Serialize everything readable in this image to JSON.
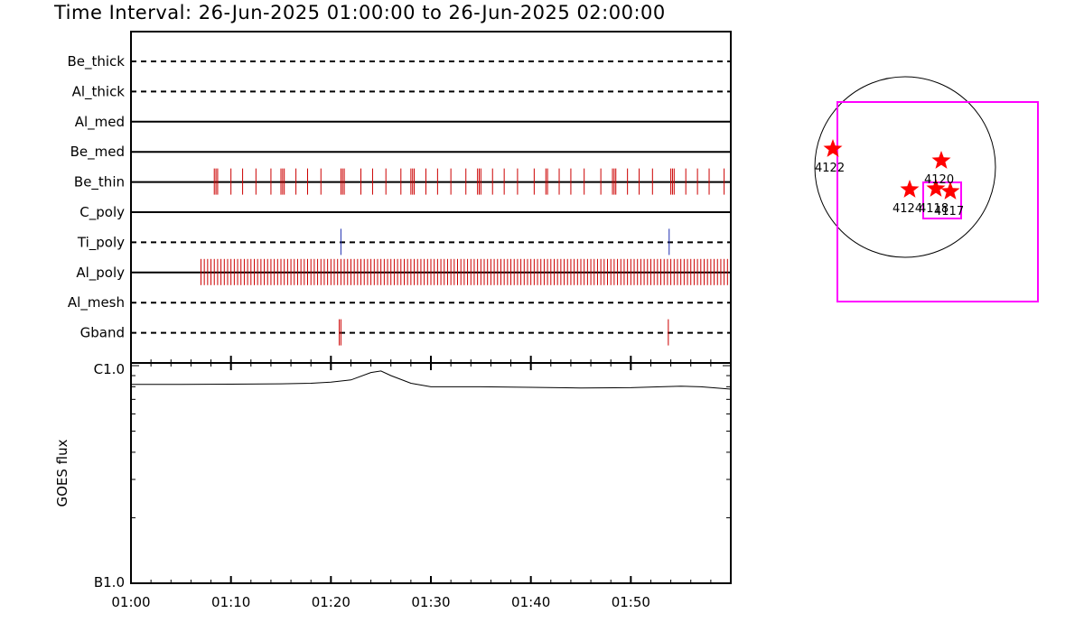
{
  "title": "Time Interval: 26-Jun-2025 01:00:00 to 26-Jun-2025 02:00:00",
  "chart_data": [
    {
      "type": "timeline",
      "x_range": [
        "01:00",
        "02:00"
      ],
      "x_ticks": [
        "01:00",
        "01:10",
        "01:20",
        "01:30",
        "01:40",
        "01:50"
      ],
      "rows": [
        {
          "name": "Be_thick",
          "style": "dashed",
          "events": [],
          "color": "#cc0000"
        },
        {
          "name": "Al_thick",
          "style": "dashed",
          "events": [],
          "color": "#cc0000"
        },
        {
          "name": "Al_med",
          "style": "solid",
          "events": [],
          "color": "#cc0000"
        },
        {
          "name": "Be_med",
          "style": "solid",
          "events": [],
          "color": "#cc0000"
        },
        {
          "name": "Be_thin",
          "style": "solid",
          "color": "#cc0000",
          "events": [
            "01:08:20",
            "01:08:30",
            "01:08:40",
            "01:10:00",
            "01:11:10",
            "01:12:30",
            "01:14:00",
            "01:15:00",
            "01:15:10",
            "01:15:20",
            "01:16:30",
            "01:17:40",
            "01:19:00",
            "01:21:00",
            "01:21:10",
            "01:21:20",
            "01:23:00",
            "01:24:10",
            "01:25:30",
            "01:27:00",
            "01:28:00",
            "01:28:10",
            "01:28:20",
            "01:29:30",
            "01:30:40",
            "01:32:00",
            "01:33:30",
            "01:34:40",
            "01:34:50",
            "01:35:00",
            "01:36:10",
            "01:37:20",
            "01:38:40",
            "01:40:20",
            "01:41:30",
            "01:41:40",
            "01:42:50",
            "01:44:00",
            "01:45:20",
            "01:47:00",
            "01:48:10",
            "01:48:20",
            "01:48:30",
            "01:49:40",
            "01:50:50",
            "01:52:10",
            "01:54:00",
            "01:54:10",
            "01:54:20",
            "01:55:30",
            "01:56:40",
            "01:57:50",
            "01:59:20"
          ]
        },
        {
          "name": "C_poly",
          "style": "solid",
          "events": [],
          "color": "#cc0000"
        },
        {
          "name": "Ti_poly",
          "style": "dashed",
          "color": "#1f2fb0",
          "events": [
            "01:21:00",
            "01:53:50"
          ]
        },
        {
          "name": "Al_poly",
          "style": "solid",
          "color": "#cc0000",
          "events": []
        },
        {
          "name": "Al_mesh",
          "style": "dashed",
          "events": [],
          "color": "#cc0000"
        },
        {
          "name": "Gband",
          "style": "dashed",
          "color": "#cc0000",
          "events": [
            "01:20:50",
            "01:21:00",
            "01:53:45"
          ]
        }
      ],
      "al_poly_dense": {
        "start": "01:07:00",
        "end": "02:00:00",
        "interval_seconds": 20
      }
    },
    {
      "type": "line",
      "ylabel": "GOES flux",
      "y_scale": "log",
      "y_ticks": [
        "C1.0",
        "B1.0"
      ],
      "x_ticks": [
        "01:00",
        "01:10",
        "01:20",
        "01:30",
        "01:40",
        "01:50"
      ],
      "series": [
        {
          "x": [
            "01:00",
            "01:05",
            "01:10",
            "01:15",
            "01:18",
            "01:20",
            "01:22",
            "01:24",
            "01:25",
            "01:26",
            "01:28",
            "01:30",
            "01:35",
            "01:40",
            "01:45",
            "01:50",
            "01:53",
            "01:55",
            "01:57",
            "02:00"
          ],
          "y": [
            8.2e-07,
            8.2e-07,
            8.22e-07,
            8.25e-07,
            8.3e-07,
            8.4e-07,
            8.6e-07,
            9.3e-07,
            9.45e-07,
            9e-07,
            8.3e-07,
            8e-07,
            8e-07,
            7.95e-07,
            7.9e-07,
            7.92e-07,
            8e-07,
            8.05e-07,
            8e-07,
            7.8e-07
          ]
        }
      ]
    }
  ],
  "solar_map": {
    "ar_labels": [
      "4122",
      "4120",
      "4124",
      "4118",
      "4117"
    ],
    "star_color": "#ff0000",
    "fov_color": "#ff00ff"
  }
}
